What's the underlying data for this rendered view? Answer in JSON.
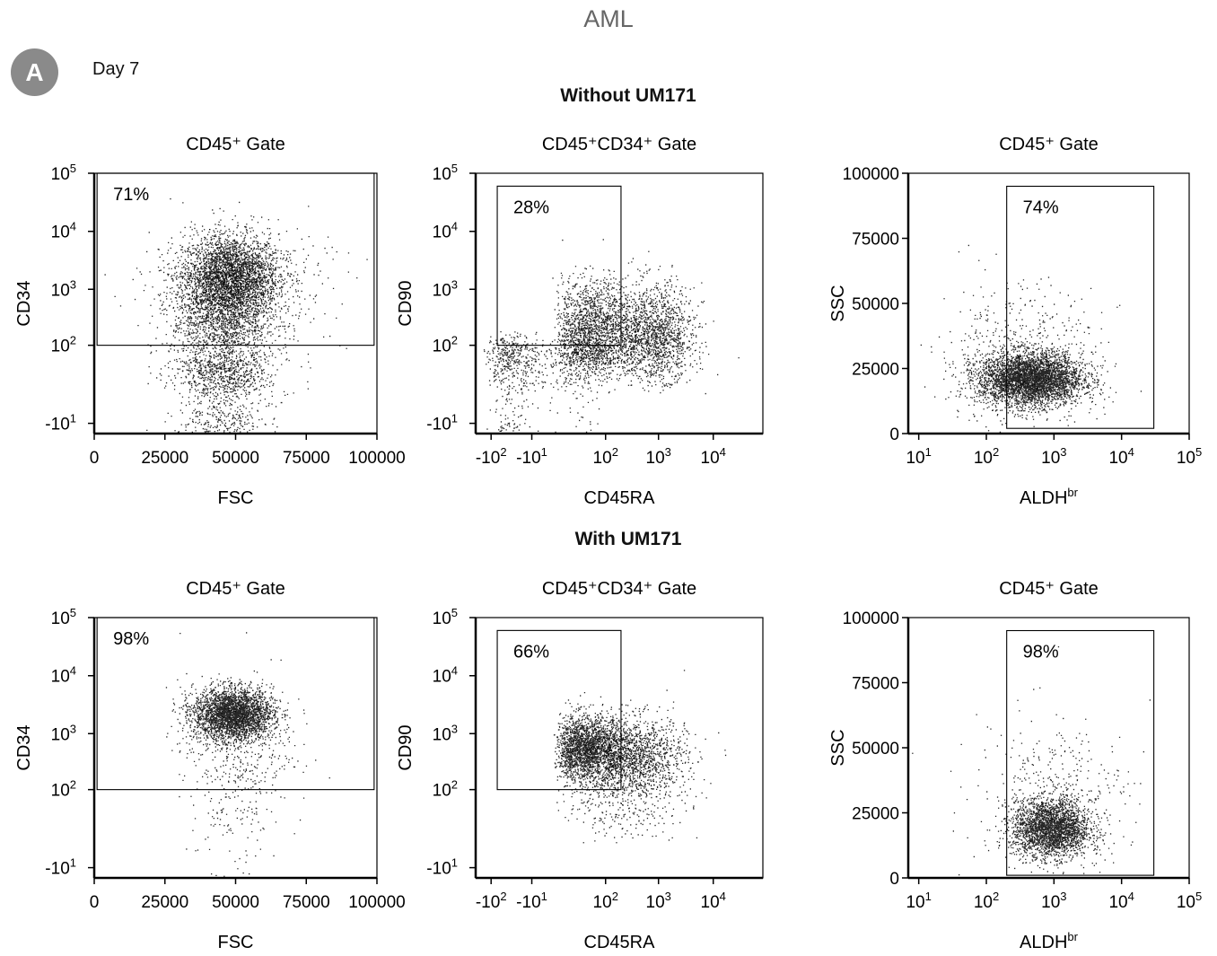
{
  "figure": {
    "title": "AML",
    "panel_label": "A",
    "timepoint": "Day 7"
  },
  "rows": [
    {
      "label": "Without UM171"
    },
    {
      "label": "With UM171"
    }
  ],
  "chart_data": [
    {
      "type": "scatter",
      "row": 0,
      "col": 0,
      "title": "CD45⁺ Gate",
      "xlabel": "FSC",
      "xlabel_sup": "",
      "ylabel": "CD34",
      "x_scale": "linear",
      "xlim": [
        0,
        100000
      ],
      "x_ticks": [
        {
          "v": 0,
          "t": "0"
        },
        {
          "v": 25000,
          "t": "25000"
        },
        {
          "v": 50000,
          "t": "50000"
        },
        {
          "v": 75000,
          "t": "75000"
        },
        {
          "v": 100000,
          "t": "100000"
        }
      ],
      "y_scale": "biexponential",
      "ylim": [
        -20,
        100000
      ],
      "y_ticks": [
        {
          "v": -10,
          "t": "-10",
          "sup": "1"
        },
        {
          "v": 100,
          "t": "10",
          "sup": "2"
        },
        {
          "v": 1000,
          "t": "10",
          "sup": "3"
        },
        {
          "v": 10000,
          "t": "10",
          "sup": "4"
        },
        {
          "v": 100000,
          "t": "10",
          "sup": "5"
        }
      ],
      "gate": {
        "x": [
          1000,
          99000
        ],
        "y": [
          100,
          100000
        ],
        "percent": "71%"
      },
      "clusters": [
        {
          "n": 2600,
          "x": 48000,
          "xsd": 8500,
          "y": 1800,
          "ysd": 0.35,
          "yscale": "log"
        },
        {
          "n": 2000,
          "x": 46000,
          "xsd": 9500,
          "y": 320,
          "ysd": 0.55,
          "yscale": "log"
        },
        {
          "n": 1000,
          "x": 45000,
          "xsd": 8500,
          "y": 8,
          "ysd": 25,
          "yscale": "linear"
        },
        {
          "n": 400,
          "x": 52000,
          "xsd": 16000,
          "y": 1200,
          "ysd": 0.5,
          "yscale": "log"
        }
      ]
    },
    {
      "type": "scatter",
      "row": 0,
      "col": 1,
      "title": "CD45⁺CD34⁺ Gate",
      "xlabel": "CD45RA",
      "xlabel_sup": "",
      "ylabel": "CD90",
      "x_scale": "biexponential",
      "xlim": [
        -200,
        80000
      ],
      "x_ticks": [
        {
          "v": -100,
          "t": "-10",
          "sup": "2"
        },
        {
          "v": -10,
          "t": "-10",
          "sup": "1"
        },
        {
          "v": 100,
          "t": "10",
          "sup": "2"
        },
        {
          "v": 1000,
          "t": "10",
          "sup": "3"
        },
        {
          "v": 10000,
          "t": "10",
          "sup": "4"
        }
      ],
      "y_scale": "biexponential",
      "ylim": [
        -20,
        100000
      ],
      "y_ticks": [
        {
          "v": -10,
          "t": "-10",
          "sup": "1"
        },
        {
          "v": 100,
          "t": "10",
          "sup": "2"
        },
        {
          "v": 1000,
          "t": "10",
          "sup": "3"
        },
        {
          "v": 10000,
          "t": "10",
          "sup": "4"
        },
        {
          "v": 100000,
          "t": "10",
          "sup": "5"
        }
      ],
      "gate": {
        "x": [
          -75,
          200
        ],
        "y": [
          100,
          60000
        ],
        "percent": "28%"
      },
      "clusters": [
        {
          "n": 2000,
          "x": 60,
          "xsd": 0.45,
          "xscale": "log",
          "y": 180,
          "ysd": 0.45,
          "yscale": "log"
        },
        {
          "n": 1400,
          "x": 900,
          "xsd": 0.35,
          "xscale": "log",
          "y": 150,
          "ysd": 0.45,
          "yscale": "log"
        },
        {
          "n": 800,
          "x": -20,
          "xsd": 40,
          "xscale": "linear",
          "y": 40,
          "ysd": 50,
          "yscale": "linear"
        }
      ]
    },
    {
      "type": "scatter",
      "row": 0,
      "col": 2,
      "title": "CD45⁺ Gate",
      "xlabel": "ALDH",
      "xlabel_sup": "br",
      "ylabel": "SSC",
      "x_scale": "log",
      "xlim": [
        7,
        100000
      ],
      "x_ticks": [
        {
          "v": 10,
          "t": "10",
          "sup": "1"
        },
        {
          "v": 100,
          "t": "10",
          "sup": "2"
        },
        {
          "v": 1000,
          "t": "10",
          "sup": "3"
        },
        {
          "v": 10000,
          "t": "10",
          "sup": "4"
        },
        {
          "v": 100000,
          "t": "10",
          "sup": "5"
        }
      ],
      "y_scale": "linear",
      "ylim": [
        0,
        100000
      ],
      "y_ticks": [
        {
          "v": 0,
          "t": "0"
        },
        {
          "v": 25000,
          "t": "25000"
        },
        {
          "v": 50000,
          "t": "50000"
        },
        {
          "v": 75000,
          "t": "75000"
        },
        {
          "v": 100000,
          "t": "100000"
        }
      ],
      "gate": {
        "x": [
          200,
          30000
        ],
        "y": [
          2000,
          95000
        ],
        "percent": "74%"
      },
      "clusters": [
        {
          "n": 4000,
          "x": 450,
          "xsd": 0.38,
          "xscale": "log",
          "y": 21000,
          "ysd": 5000,
          "yscale": "linear"
        },
        {
          "n": 500,
          "x": 300,
          "xsd": 0.6,
          "xscale": "log",
          "y": 30000,
          "ysd": 14000,
          "yscale": "linear"
        }
      ]
    },
    {
      "type": "scatter",
      "row": 1,
      "col": 0,
      "title": "CD45⁺ Gate",
      "xlabel": "FSC",
      "xlabel_sup": "",
      "ylabel": "CD34",
      "x_scale": "linear",
      "xlim": [
        0,
        100000
      ],
      "x_ticks": [
        {
          "v": 0,
          "t": "0"
        },
        {
          "v": 25000,
          "t": "25000"
        },
        {
          "v": 50000,
          "t": "50000"
        },
        {
          "v": 75000,
          "t": "75000"
        },
        {
          "v": 100000,
          "t": "100000"
        }
      ],
      "y_scale": "biexponential",
      "ylim": [
        -20,
        100000
      ],
      "y_ticks": [
        {
          "v": -10,
          "t": "-10",
          "sup": "1"
        },
        {
          "v": 100,
          "t": "10",
          "sup": "2"
        },
        {
          "v": 1000,
          "t": "10",
          "sup": "3"
        },
        {
          "v": 10000,
          "t": "10",
          "sup": "4"
        },
        {
          "v": 100000,
          "t": "10",
          "sup": "5"
        }
      ],
      "gate": {
        "x": [
          1000,
          99000
        ],
        "y": [
          100,
          100000
        ],
        "percent": "98%"
      },
      "clusters": [
        {
          "n": 3000,
          "x": 49000,
          "xsd": 7000,
          "y": 2200,
          "ysd": 0.22,
          "yscale": "log"
        },
        {
          "n": 400,
          "x": 50000,
          "xsd": 10000,
          "y": 600,
          "ysd": 0.55,
          "yscale": "log"
        },
        {
          "n": 120,
          "x": 50000,
          "xsd": 8000,
          "y": 20,
          "ysd": 40,
          "yscale": "linear"
        }
      ]
    },
    {
      "type": "scatter",
      "row": 1,
      "col": 1,
      "title": "CD45⁺CD34⁺ Gate",
      "xlabel": "CD45RA",
      "xlabel_sup": "",
      "ylabel": "CD90",
      "x_scale": "biexponential",
      "xlim": [
        -200,
        80000
      ],
      "x_ticks": [
        {
          "v": -100,
          "t": "-10",
          "sup": "2"
        },
        {
          "v": -10,
          "t": "-10",
          "sup": "1"
        },
        {
          "v": 100,
          "t": "10",
          "sup": "2"
        },
        {
          "v": 1000,
          "t": "10",
          "sup": "3"
        },
        {
          "v": 10000,
          "t": "10",
          "sup": "4"
        }
      ],
      "y_scale": "biexponential",
      "ylim": [
        -20,
        100000
      ],
      "y_ticks": [
        {
          "v": -10,
          "t": "-10",
          "sup": "1"
        },
        {
          "v": 100,
          "t": "10",
          "sup": "2"
        },
        {
          "v": 1000,
          "t": "10",
          "sup": "3"
        },
        {
          "v": 10000,
          "t": "10",
          "sup": "4"
        },
        {
          "v": 100000,
          "t": "10",
          "sup": "5"
        }
      ],
      "gate": {
        "x": [
          -75,
          200
        ],
        "y": [
          100,
          60000
        ],
        "percent": "66%"
      },
      "clusters": [
        {
          "n": 2200,
          "x": 40,
          "xsd": 0.4,
          "xscale": "log",
          "y": 550,
          "ysd": 0.28,
          "yscale": "log"
        },
        {
          "n": 1200,
          "x": 400,
          "xsd": 0.45,
          "xscale": "log",
          "y": 400,
          "ysd": 0.35,
          "yscale": "log"
        },
        {
          "n": 400,
          "x": 200,
          "xsd": 0.6,
          "xscale": "log",
          "y": 90,
          "ysd": 0.5,
          "yscale": "log"
        }
      ]
    },
    {
      "type": "scatter",
      "row": 1,
      "col": 2,
      "title": "CD45⁺ Gate",
      "xlabel": "ALDH",
      "xlabel_sup": "br",
      "ylabel": "SSC",
      "x_scale": "log",
      "xlim": [
        7,
        100000
      ],
      "x_ticks": [
        {
          "v": 10,
          "t": "10",
          "sup": "1"
        },
        {
          "v": 100,
          "t": "10",
          "sup": "2"
        },
        {
          "v": 1000,
          "t": "10",
          "sup": "3"
        },
        {
          "v": 10000,
          "t": "10",
          "sup": "4"
        },
        {
          "v": 100000,
          "t": "10",
          "sup": "5"
        }
      ],
      "y_scale": "linear",
      "ylim": [
        0,
        100000
      ],
      "y_ticks": [
        {
          "v": 0,
          "t": "0"
        },
        {
          "v": 25000,
          "t": "25000"
        },
        {
          "v": 50000,
          "t": "50000"
        },
        {
          "v": 75000,
          "t": "75000"
        },
        {
          "v": 100000,
          "t": "100000"
        }
      ],
      "gate": {
        "x": [
          200,
          30000
        ],
        "y": [
          1000,
          95000
        ],
        "percent": "98%"
      },
      "clusters": [
        {
          "n": 2600,
          "x": 900,
          "xsd": 0.28,
          "xscale": "log",
          "y": 19000,
          "ysd": 5500,
          "yscale": "linear"
        },
        {
          "n": 350,
          "x": 1200,
          "xsd": 0.5,
          "xscale": "log",
          "y": 32000,
          "ysd": 12000,
          "yscale": "linear"
        },
        {
          "n": 60,
          "x": 300,
          "xsd": 0.8,
          "xscale": "log",
          "y": 35000,
          "ysd": 25000,
          "yscale": "linear"
        }
      ]
    }
  ]
}
